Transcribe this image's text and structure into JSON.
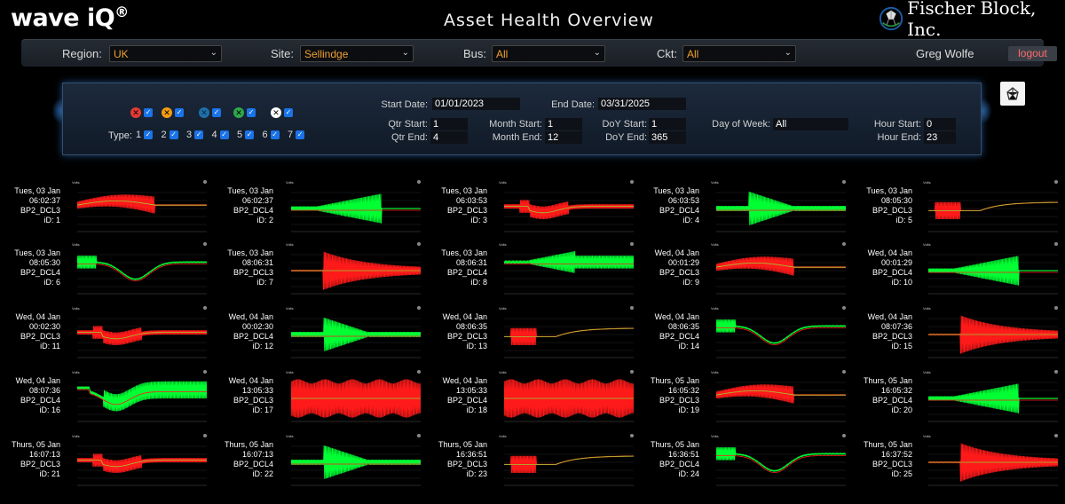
{
  "app": {
    "logo": "wave iQ",
    "logo_mark": "®",
    "title": "Asset Health Overview",
    "company": "Fischer Block, Inc."
  },
  "filters": {
    "region_label": "Region:",
    "region_value": "UK",
    "site_label": "Site:",
    "site_value": "Sellindge",
    "bus_label": "Bus:",
    "bus_value": "All",
    "ckt_label": "Ckt:",
    "ckt_value": "All",
    "user": "Greg Wolfe",
    "logout": "logout"
  },
  "panel": {
    "severity": [
      {
        "color": "#e53935",
        "glyph": "✕"
      },
      {
        "color": "#f39c12",
        "glyph": "✕"
      },
      {
        "color": "#1f6fa8",
        "glyph": "✕"
      },
      {
        "color": "#2ea84a",
        "glyph": "✕"
      },
      {
        "color": "#ffffff",
        "glyph": "✕"
      }
    ],
    "type_label": "Type:",
    "types": [
      "1",
      "2",
      "3",
      "4",
      "5",
      "6",
      "7"
    ],
    "start_date_label": "Start Date:",
    "start_date": "01/01/2023",
    "end_date_label": "End Date:",
    "end_date": "03/31/2025",
    "qtr_start_label": "Qtr Start:",
    "qtr_start": "1",
    "qtr_end_label": "Qtr End:",
    "qtr_end": "4",
    "month_start_label": "Month Start:",
    "month_start": "1",
    "month_end_label": "Month End:",
    "month_end": "12",
    "doy_start_label": "DoY Start:",
    "doy_start": "1",
    "doy_end_label": "DoY End:",
    "doy_end": "365",
    "dow_label": "Day of Week:",
    "dow": "All",
    "hour_start_label": "Hour Start:",
    "hour_start": "0",
    "hour_end_label": "Hour End:",
    "hour_end": "23"
  },
  "events": [
    {
      "day": "Tues, 03 Jan",
      "time": "06:02:37",
      "circuit": "BP2_DCL3",
      "id": "iD: 1",
      "kind": "red_bell"
    },
    {
      "day": "Tues, 03 Jan",
      "time": "06:02:37",
      "circuit": "BP2_DCL4",
      "id": "iD: 2",
      "kind": "green_ramp"
    },
    {
      "day": "Tues, 03 Jan",
      "time": "06:03:53",
      "circuit": "BP2_DCL3",
      "id": "iD: 3",
      "kind": "red_dip"
    },
    {
      "day": "Tues, 03 Jan",
      "time": "06:03:53",
      "circuit": "BP2_DCL4",
      "id": "iD: 4",
      "kind": "green_spike"
    },
    {
      "day": "Tues, 03 Jan",
      "time": "08:05:30",
      "circuit": "BP2_DCL3",
      "id": "iD: 5",
      "kind": "red_step"
    },
    {
      "day": "Tues, 03 Jan",
      "time": "08:05:30",
      "circuit": "BP2_DCL4",
      "id": "iD: 6",
      "kind": "green_dip"
    },
    {
      "day": "Tues, 03 Jan",
      "time": "08:06:31",
      "circuit": "BP2_DCL3",
      "id": "iD: 7",
      "kind": "red_decay"
    },
    {
      "day": "Tues, 03 Jan",
      "time": "08:06:31",
      "circuit": "BP2_DCL4",
      "id": "iD: 8",
      "kind": "green_rise"
    },
    {
      "day": "Wed, 04 Jan",
      "time": "00:01:29",
      "circuit": "BP2_DCL3",
      "id": "iD: 9",
      "kind": "red_bell"
    },
    {
      "day": "Wed, 04 Jan",
      "time": "00:01:29",
      "circuit": "BP2_DCL4",
      "id": "iD: 10",
      "kind": "green_ramp"
    },
    {
      "day": "Wed, 04 Jan",
      "time": "00:02:30",
      "circuit": "BP2_DCL3",
      "id": "iD: 11",
      "kind": "red_dip"
    },
    {
      "day": "Wed, 04 Jan",
      "time": "00:02:30",
      "circuit": "BP2_DCL4",
      "id": "iD: 12",
      "kind": "green_spike"
    },
    {
      "day": "Wed, 04 Jan",
      "time": "08:06:35",
      "circuit": "BP2_DCL3",
      "id": "iD: 13",
      "kind": "red_step"
    },
    {
      "day": "Wed, 04 Jan",
      "time": "08:06:35",
      "circuit": "BP2_DCL4",
      "id": "iD: 14",
      "kind": "green_dip"
    },
    {
      "day": "Wed, 04 Jan",
      "time": "08:07:36",
      "circuit": "BP2_DCL3",
      "id": "iD: 15",
      "kind": "red_decay"
    },
    {
      "day": "Wed, 04 Jan",
      "time": "08:07:36",
      "circuit": "BP2_DCL4",
      "id": "iD: 16",
      "kind": "green_dip2"
    },
    {
      "day": "Wed, 04 Jan",
      "time": "13:05:33",
      "circuit": "BP2_DCL3",
      "id": "iD: 17",
      "kind": "red_full"
    },
    {
      "day": "Wed, 04 Jan",
      "time": "13:05:33",
      "circuit": "BP2_DCL4",
      "id": "iD: 18",
      "kind": "red_full"
    },
    {
      "day": "Thurs, 05 Jan",
      "time": "16:05:32",
      "circuit": "BP2_DCL3",
      "id": "iD: 19",
      "kind": "red_bell"
    },
    {
      "day": "Thurs, 05 Jan",
      "time": "16:05:32",
      "circuit": "BP2_DCL4",
      "id": "iD: 20",
      "kind": "green_ramp"
    },
    {
      "day": "Thurs, 05 Jan",
      "time": "16:07:13",
      "circuit": "BP2_DCL3",
      "id": "iD: 21",
      "kind": "red_dip"
    },
    {
      "day": "Thurs, 05 Jan",
      "time": "16:07:13",
      "circuit": "BP2_DCL4",
      "id": "iD: 22",
      "kind": "green_spike"
    },
    {
      "day": "Thurs, 05 Jan",
      "time": "16:36:51",
      "circuit": "BP2_DCL3",
      "id": "iD: 23",
      "kind": "red_step"
    },
    {
      "day": "Thurs, 05 Jan",
      "time": "16:36:51",
      "circuit": "BP2_DCL4",
      "id": "iD: 24",
      "kind": "green_dip"
    },
    {
      "day": "Thurs, 05 Jan",
      "time": "16:37:52",
      "circuit": "BP2_DCL3",
      "id": "iD: 25",
      "kind": "red_decay"
    }
  ],
  "plot_header": "Volts",
  "colors": {
    "red": "#ff1a1a",
    "green": "#00ff33",
    "accent": "#f0a030"
  }
}
